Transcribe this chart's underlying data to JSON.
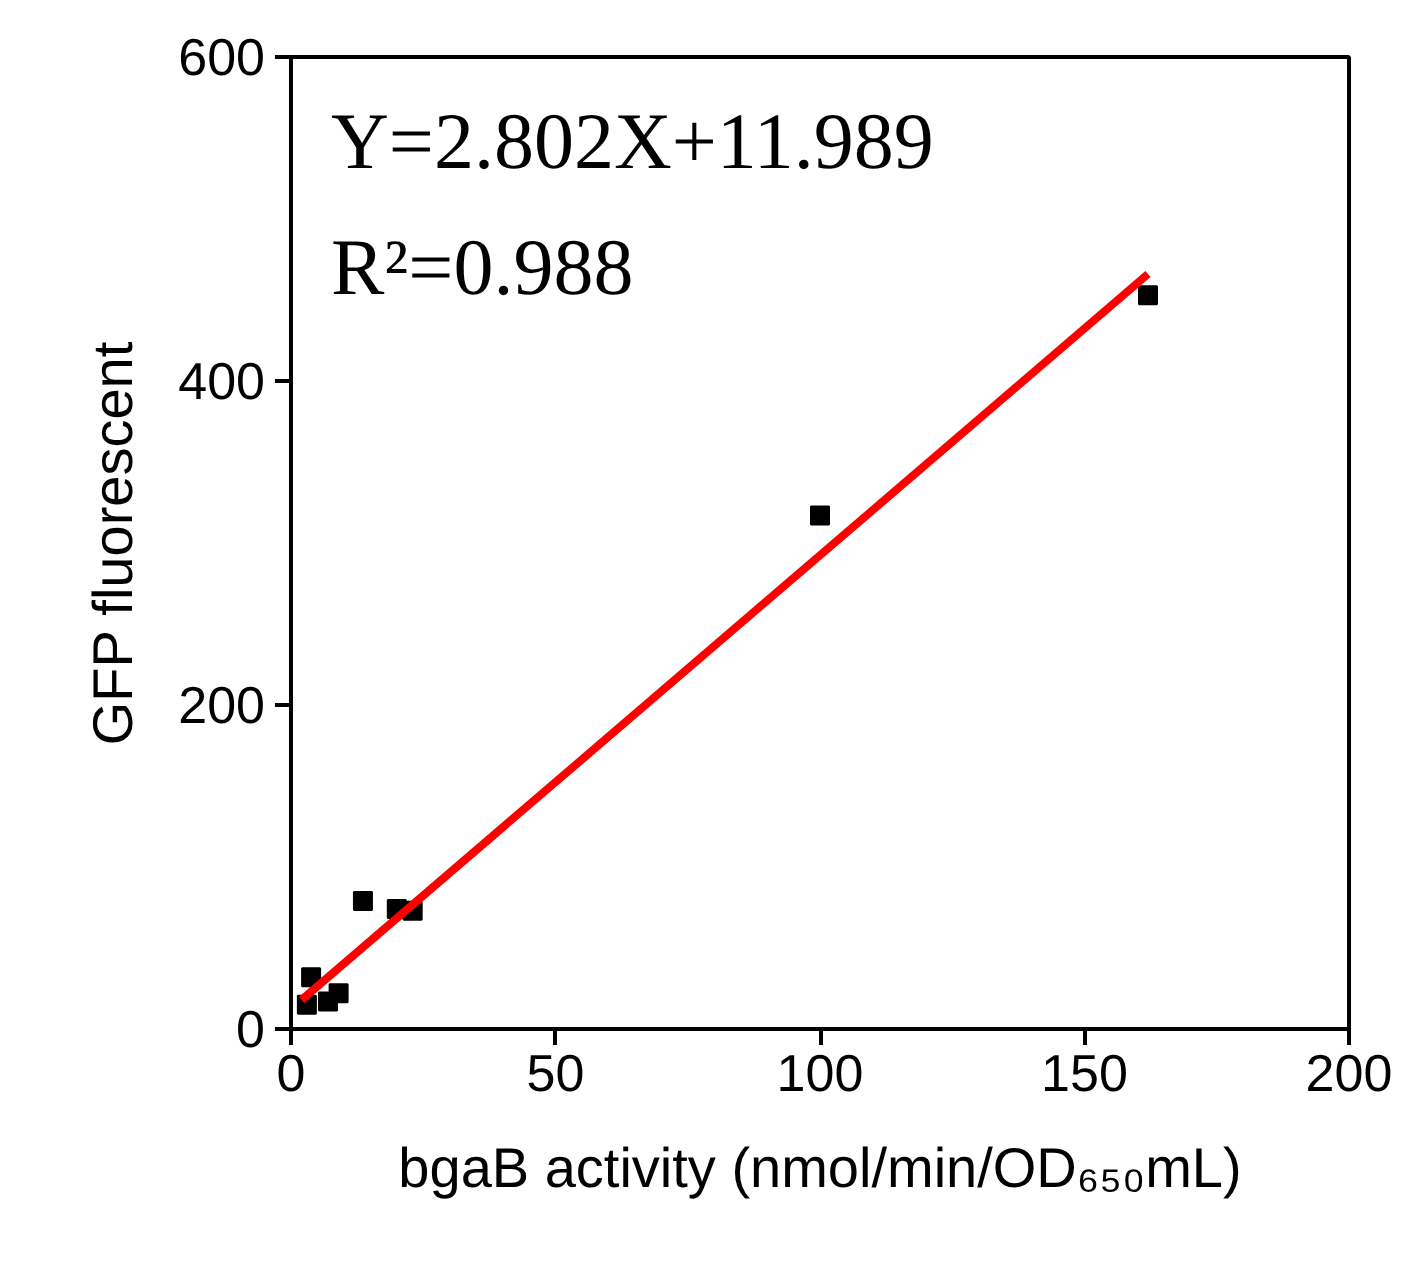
{
  "chart_data": {
    "type": "scatter",
    "xlabel": "bgaB activity (nmol/min/OD₆₅₀mL)",
    "ylabel": "GFP fluorescent",
    "annotations": [
      "Y=2.802X+11.989",
      "R²=0.988"
    ],
    "xlim": [
      0,
      200
    ],
    "xticks": [
      0,
      50,
      100,
      150,
      200
    ],
    "ylim": [
      0,
      600
    ],
    "yticks": [
      0,
      200,
      400,
      600
    ],
    "grid": false,
    "series": [
      {
        "marker": "square",
        "color": "#000000",
        "x": [
          3,
          3.8,
          7,
          9,
          13.6,
          20,
          23,
          100,
          162
        ],
        "values": [
          15,
          32,
          17,
          22,
          79,
          74,
          73,
          317,
          453
        ]
      },
      {
        "type": "line",
        "marker": "none",
        "color": "#ff0000",
        "x": [
          2,
          162
        ],
        "values": [
          18,
          466
        ]
      }
    ]
  }
}
